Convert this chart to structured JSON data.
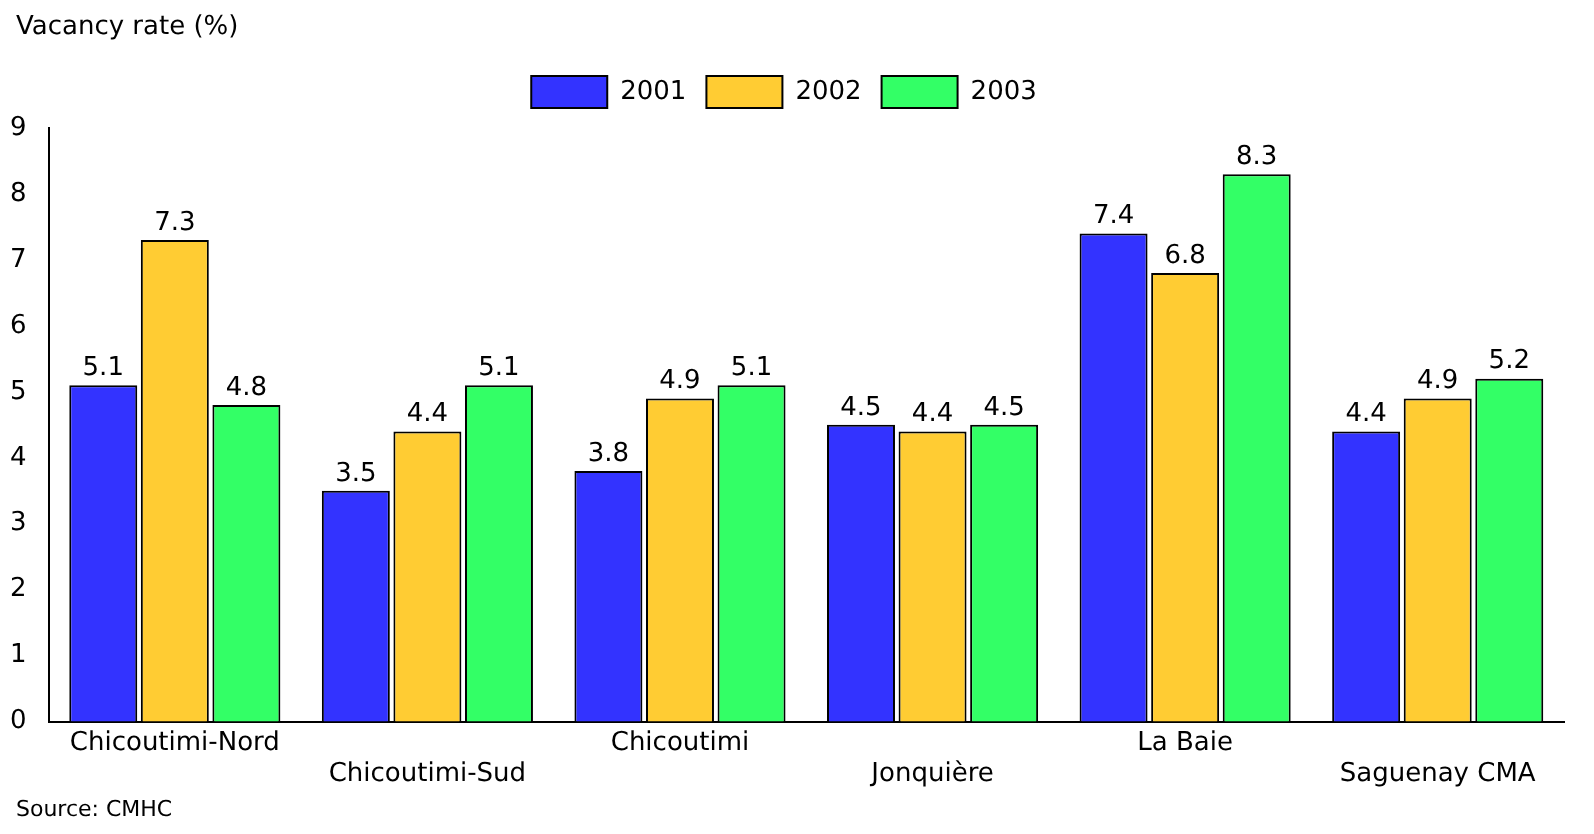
{
  "chart_data": {
    "type": "bar",
    "ylabel": "Vacancy rate (%)",
    "annotations": [
      "Source: CMHC"
    ],
    "categories": [
      "Chicoutimi-Nord",
      "Chicoutimi-Sud",
      "Chicoutimi",
      "Jonquière",
      "La Baie",
      "Saguenay CMA"
    ],
    "series": [
      {
        "name": "2001",
        "color": "#3333ff",
        "values": [
          5.1,
          3.5,
          3.8,
          4.5,
          7.4,
          4.4
        ]
      },
      {
        "name": "2002",
        "color": "#ffcc33",
        "values": [
          7.3,
          4.4,
          4.9,
          4.4,
          6.8,
          4.9
        ]
      },
      {
        "name": "2003",
        "color": "#33ff66",
        "values": [
          4.8,
          5.1,
          5.1,
          4.5,
          8.3,
          5.2
        ]
      }
    ],
    "ylim": [
      0,
      9
    ],
    "yticks": [
      0,
      1,
      2,
      3,
      4,
      5,
      6,
      7,
      8,
      9
    ],
    "grid": false,
    "legend": "top",
    "data_labels": true
  }
}
